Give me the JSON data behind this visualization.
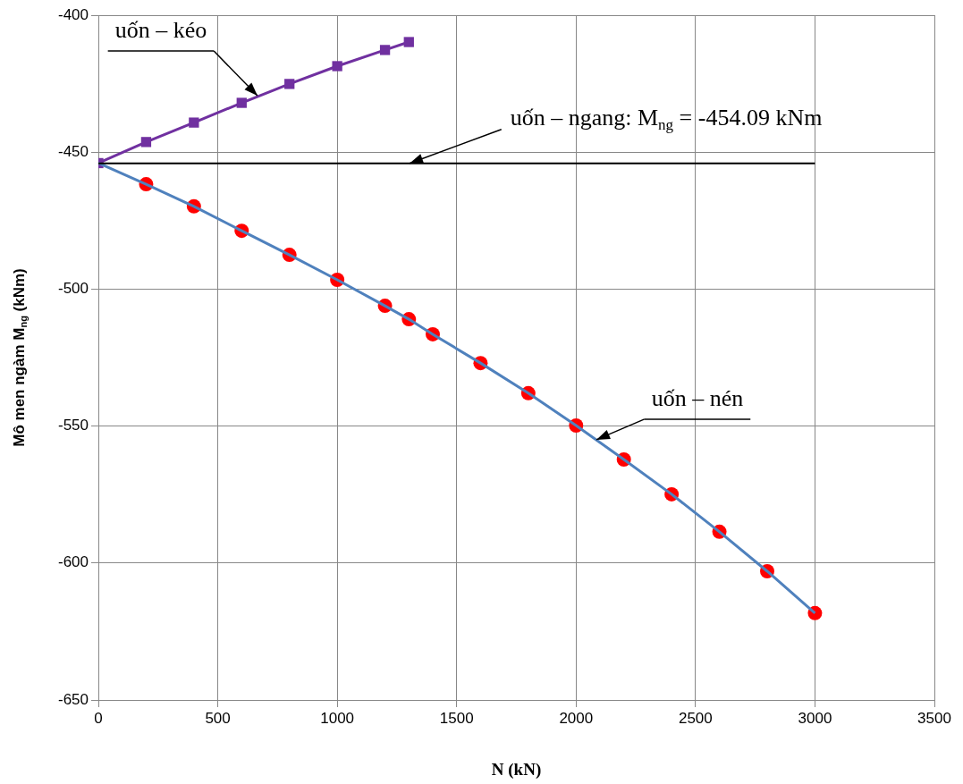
{
  "chart_data": {
    "type": "line",
    "xlabel": "N (kN)",
    "ylabel": "Mô men ngàm M$_{ng}$ (kNm)",
    "xlim": [
      0,
      3500
    ],
    "xticks": [
      0,
      500,
      1000,
      1500,
      2000,
      2500,
      3000,
      3500
    ],
    "ylim": [
      -650,
      -400
    ],
    "yticks": [
      -650,
      -600,
      -550,
      -500,
      -450,
      -400
    ],
    "grid": true,
    "legend": false,
    "series": [
      {
        "color": "#000000",
        "marker": "none",
        "x": [
          0,
          3000
        ],
        "values": [
          -454.09,
          -454.09
        ]
      },
      {
        "color": "#4f81bd",
        "marker": "none",
        "x": [
          0,
          200,
          400,
          600,
          800,
          1000,
          1200,
          1300,
          1400,
          1600,
          1800,
          2000,
          2200,
          2400,
          2600,
          2800,
          3000
        ],
        "values": [
          -454,
          -461.7,
          -469.8,
          -478.7,
          -487.5,
          -496.6,
          -506.1,
          -511,
          -516.5,
          -527,
          -538,
          -549.8,
          -562.2,
          -574.9,
          -588.6,
          -603,
          -618.3
        ]
      },
      {
        "type": "scatter",
        "color": "#ff0000",
        "marker": "circle",
        "x": [
          200,
          400,
          600,
          800,
          1000,
          1200,
          1300,
          1400,
          1600,
          1800,
          2000,
          2200,
          2400,
          2600,
          2800,
          3000
        ],
        "values": [
          -461.7,
          -469.8,
          -478.7,
          -487.5,
          -496.6,
          -506.1,
          -511,
          -516.5,
          -527,
          -538,
          -549.8,
          -562.2,
          -574.9,
          -588.6,
          -603,
          -618.3
        ]
      },
      {
        "color": "#7030a0",
        "marker": "square",
        "x": [
          0,
          200,
          400,
          600,
          800,
          1000,
          1200,
          1300
        ],
        "values": [
          -454,
          -446.3,
          -439.2,
          -432,
          -425.1,
          -418.6,
          -412.7,
          -409.8
        ]
      }
    ],
    "annotations": [
      {
        "text": "uốn – kéo",
        "x": 666,
        "y": -429.4
      },
      {
        "text": "uốn – ngang: M$_{ng}$ = -454.09 kNm",
        "x": 1303,
        "y": -454.09
      },
      {
        "text": "uốn – nén",
        "x": 2085,
        "y": -555
      }
    ]
  }
}
